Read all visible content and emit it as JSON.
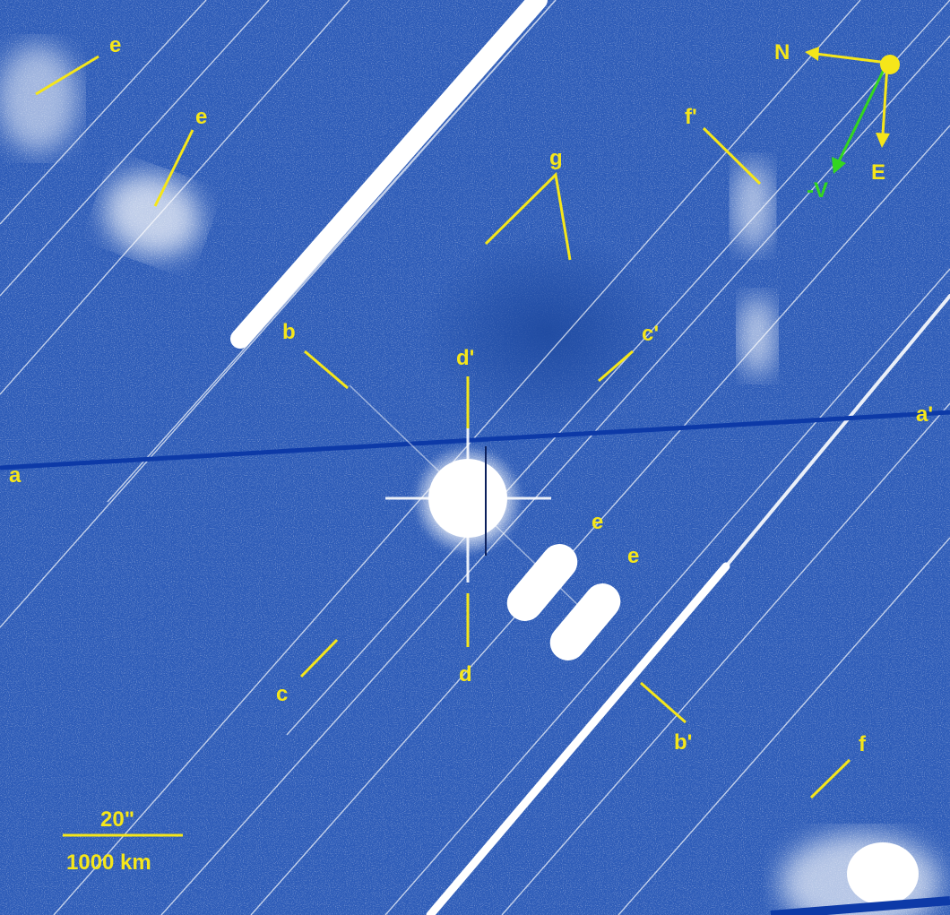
{
  "colors": {
    "background": "#2e5cb8",
    "annotation": "#f5e61a",
    "velocity_arrow": "#33d61f",
    "streak": "#ffffff",
    "reference_line": "#0d3aa8"
  },
  "labels": {
    "e1": "e",
    "e2": "e",
    "e3": "e",
    "e4": "e",
    "g": "g",
    "f_prime": "f'",
    "f": "f",
    "b": "b",
    "b_prime": "b'",
    "c": "c",
    "c_prime": "c'",
    "d": "d",
    "d_prime": "d'",
    "a": "a",
    "a_prime": "a'"
  },
  "compass": {
    "north": "N",
    "east": "E",
    "velocity": "-V"
  },
  "scale_bar": {
    "angular": "20\"",
    "physical": "1000 km"
  }
}
